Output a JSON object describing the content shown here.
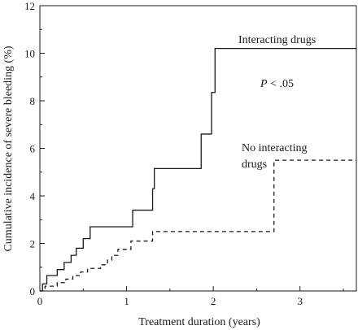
{
  "chart_data": {
    "type": "line",
    "step": true,
    "xlabel": "Treatment duration (years)",
    "ylabel": "Cumulative incidence of severe bleeding (%)",
    "xlim": [
      0,
      3.65
    ],
    "ylim": [
      0,
      12
    ],
    "xticks": [
      0,
      1,
      2,
      3
    ],
    "yticks": [
      0,
      2,
      4,
      6,
      8,
      10,
      12
    ],
    "grid": false,
    "legend": "none",
    "annotations": [
      {
        "id": "interacting",
        "text": "Interacting drugs",
        "style": "normal"
      },
      {
        "id": "pvalue",
        "text": "P < .05",
        "style": "italic-p"
      },
      {
        "id": "no-interacting-1",
        "text": "No interacting",
        "style": "normal"
      },
      {
        "id": "no-interacting-2",
        "text": "drugs",
        "style": "normal"
      }
    ],
    "series": [
      {
        "label": "Interacting drugs",
        "line_style": "solid",
        "color": "#1a1a1a",
        "points": [
          [
            0,
            0
          ],
          [
            0.03,
            0.3
          ],
          [
            0.08,
            0.65
          ],
          [
            0.2,
            0.9
          ],
          [
            0.28,
            1.2
          ],
          [
            0.36,
            1.5
          ],
          [
            0.42,
            1.8
          ],
          [
            0.5,
            2.2
          ],
          [
            0.58,
            2.7
          ],
          [
            1.07,
            3.4
          ],
          [
            1.3,
            4.3
          ],
          [
            1.32,
            5.15
          ],
          [
            1.86,
            6.6
          ],
          [
            1.98,
            8.35
          ],
          [
            2.02,
            10.2
          ],
          [
            3.65,
            10.2
          ]
        ]
      },
      {
        "label": "No interacting drugs",
        "line_style": "dashed",
        "color": "#1a1a1a",
        "points": [
          [
            0,
            0
          ],
          [
            0.06,
            0.2
          ],
          [
            0.2,
            0.35
          ],
          [
            0.3,
            0.5
          ],
          [
            0.38,
            0.65
          ],
          [
            0.47,
            0.8
          ],
          [
            0.55,
            0.95
          ],
          [
            0.7,
            1.1
          ],
          [
            0.78,
            1.3
          ],
          [
            0.83,
            1.5
          ],
          [
            0.9,
            1.75
          ],
          [
            1.05,
            2.1
          ],
          [
            1.3,
            2.5
          ],
          [
            2.7,
            5.5
          ],
          [
            3.65,
            5.5
          ]
        ]
      }
    ]
  }
}
